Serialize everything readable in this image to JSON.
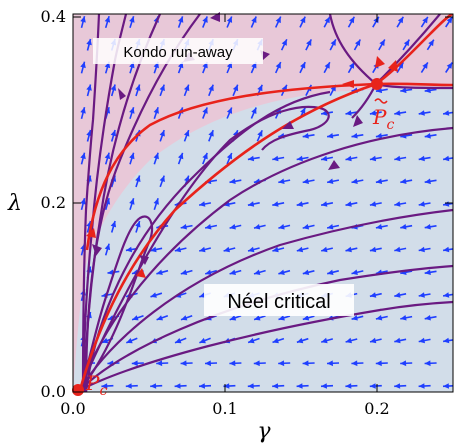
{
  "figure": {
    "x_axis": {
      "label": "γ",
      "ticks": [
        {
          "value": 0.0,
          "label": "0.0"
        },
        {
          "value": 0.1,
          "label": "0.1"
        },
        {
          "value": 0.2,
          "label": "0.2"
        }
      ],
      "range": [
        0,
        0.25
      ]
    },
    "y_axis": {
      "label": "λ",
      "ticks": [
        {
          "value": 0.0,
          "label": "0.0"
        },
        {
          "value": 0.2,
          "label": "0.2"
        },
        {
          "value": 0.4,
          "label": "0.4"
        }
      ],
      "range": [
        0,
        0.405
      ]
    },
    "regions": {
      "kondo_label": "Kondo run-away",
      "neel_label": "Néel critical"
    },
    "points": {
      "pc_label": "P",
      "pc_sub": "c",
      "pc_tilde_label": "P",
      "pc_tilde_sub": "c"
    },
    "colors": {
      "kondo_region": "#e8c8d8",
      "neel_region": "#d2dde9",
      "arrows": "#1f3fff",
      "flow_lines": "#6a1a82",
      "separatrix": "#e8231b"
    }
  }
}
